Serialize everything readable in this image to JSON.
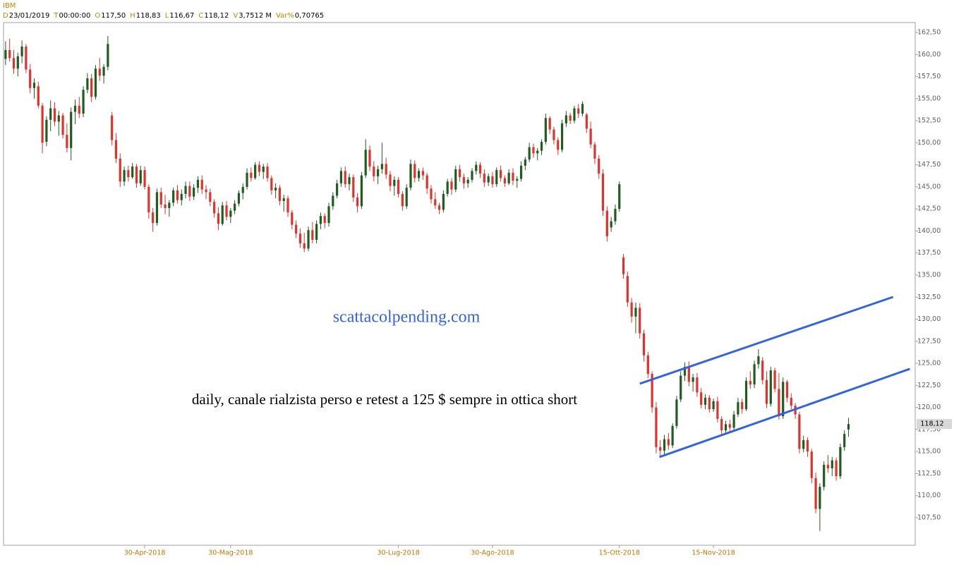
{
  "header": {
    "symbol": "IBM",
    "fields": [
      {
        "key": "D",
        "value": "23/01/2019"
      },
      {
        "key": "T",
        "value": "00:00:00"
      },
      {
        "key": "O",
        "value": "117,50"
      },
      {
        "key": "H",
        "value": "118,83"
      },
      {
        "key": "L",
        "value": "116,67"
      },
      {
        "key": "C",
        "value": "118,12"
      },
      {
        "key": "V",
        "value": "3,7512 M"
      },
      {
        "key": "Var%",
        "value": "0,70765"
      }
    ]
  },
  "chart_data": {
    "type": "candlestick",
    "annotations": [
      "scattacolpending.com",
      "daily, canale rialzista perso e retest a 125 $ sempre in ottica short"
    ],
    "up_color": "#1f5c1f",
    "down_color": "#e2312b",
    "trend_color": "#3464dc",
    "xlim": [
      -0.5,
      222.3
    ],
    "ylim": [
      104.38,
      163.62
    ],
    "xticks": [
      {
        "value": 34,
        "label": "30-Apr-2018"
      },
      {
        "value": 55,
        "label": "30-Mag-2018"
      },
      {
        "value": 96,
        "label": "30-Lug-2018"
      },
      {
        "value": 119,
        "label": "30-Ago-2018"
      },
      {
        "value": 150,
        "label": "15-Ott-2018"
      },
      {
        "value": 173,
        "label": "15-Nov-2018"
      }
    ],
    "yticks": [
      {
        "value": 107.5,
        "label": "107,50"
      },
      {
        "value": 110,
        "label": "110,00"
      },
      {
        "value": 112.5,
        "label": "112,50"
      },
      {
        "value": 115,
        "label": "115,00"
      },
      {
        "value": 117.5,
        "label": "117,50"
      },
      {
        "value": 120,
        "label": "120,00"
      },
      {
        "value": 122.5,
        "label": "122,50"
      },
      {
        "value": 125,
        "label": "125,00"
      },
      {
        "value": 127.5,
        "label": "127,50"
      },
      {
        "value": 130,
        "label": "130,00"
      },
      {
        "value": 132.5,
        "label": "132,50"
      },
      {
        "value": 135,
        "label": "135,00"
      },
      {
        "value": 137.5,
        "label": "137,50"
      },
      {
        "value": 140,
        "label": "140,00"
      },
      {
        "value": 142.5,
        "label": "142,50"
      },
      {
        "value": 145,
        "label": "145,00"
      },
      {
        "value": 147.5,
        "label": "147,50"
      },
      {
        "value": 150,
        "label": "150,00"
      },
      {
        "value": 152.5,
        "label": "152,50"
      },
      {
        "value": 155,
        "label": "155,00"
      },
      {
        "value": 157.5,
        "label": "157,50"
      },
      {
        "value": 160,
        "label": "160,00"
      },
      {
        "value": 162.5,
        "label": "162,50"
      }
    ],
    "last_price": {
      "value": 118.12,
      "label": "118,12"
    },
    "trendlines": [
      {
        "x": [
          155,
          216.9
        ],
        "y": [
          122.69,
          132.52
        ]
      },
      {
        "x": [
          159.8,
          221
        ],
        "y": [
          114.38,
          124.37
        ]
      }
    ],
    "candles": [
      [
        159.5,
        161.5,
        158.8,
        160.5
      ],
      [
        160.5,
        161.8,
        159.2,
        159.6
      ],
      [
        159.6,
        160.5,
        157.8,
        158.4
      ],
      [
        158.4,
        160.2,
        157.5,
        159.8
      ],
      [
        159.8,
        161.6,
        159.0,
        160.9
      ],
      [
        160.9,
        161.2,
        157.9,
        158.3
      ],
      [
        158.3,
        158.9,
        155.6,
        156.2
      ],
      [
        156.2,
        157.3,
        155.0,
        156.8
      ],
      [
        156.4,
        156.9,
        153.9,
        154.2
      ],
      [
        154.2,
        154.5,
        148.8,
        150.0
      ],
      [
        150.1,
        153.0,
        149.6,
        152.6
      ],
      [
        152.6,
        154.8,
        151.3,
        153.9
      ],
      [
        153.9,
        154.6,
        151.9,
        152.4
      ],
      [
        152.4,
        153.6,
        150.8,
        153.1
      ],
      [
        153.1,
        153.4,
        150.5,
        150.9
      ],
      [
        150.9,
        152.2,
        148.9,
        149.4
      ],
      [
        149.4,
        154.0,
        148.0,
        153.5
      ],
      [
        153.5,
        154.9,
        152.1,
        154.2
      ],
      [
        154.2,
        155.2,
        152.8,
        153.3
      ],
      [
        153.3,
        156.4,
        152.9,
        156.0
      ],
      [
        156.0,
        157.9,
        155.6,
        157.3
      ],
      [
        157.3,
        157.8,
        154.6,
        155.2
      ],
      [
        155.2,
        158.8,
        154.9,
        158.4
      ],
      [
        158.4,
        159.6,
        157.0,
        157.6
      ],
      [
        157.6,
        158.9,
        156.7,
        158.6
      ],
      [
        158.6,
        162.1,
        158.2,
        161.2
      ],
      [
        153.1,
        153.5,
        149.7,
        150.3
      ],
      [
        150.3,
        151.1,
        147.7,
        148.2
      ],
      [
        148.2,
        148.8,
        145.0,
        145.6
      ],
      [
        145.6,
        147.3,
        145.1,
        146.9
      ],
      [
        146.9,
        147.4,
        145.6,
        146.1
      ],
      [
        146.1,
        147.7,
        145.9,
        147.3
      ],
      [
        147.3,
        147.6,
        144.9,
        145.4
      ],
      [
        145.4,
        147.4,
        145.1,
        146.9
      ],
      [
        146.9,
        147.3,
        144.7,
        145.0
      ],
      [
        145.0,
        145.3,
        141.4,
        142.1
      ],
      [
        142.1,
        142.6,
        139.9,
        140.9
      ],
      [
        140.9,
        144.8,
        140.6,
        144.4
      ],
      [
        144.4,
        144.9,
        142.6,
        143.0
      ],
      [
        143.0,
        144.1,
        141.9,
        142.6
      ],
      [
        142.6,
        143.5,
        141.6,
        143.2
      ],
      [
        143.2,
        144.9,
        142.8,
        144.6
      ],
      [
        144.6,
        145.2,
        143.1,
        143.5
      ],
      [
        143.5,
        144.7,
        142.9,
        144.2
      ],
      [
        144.2,
        145.6,
        143.7,
        145.1
      ],
      [
        145.1,
        145.6,
        143.4,
        143.9
      ],
      [
        143.9,
        145.3,
        143.5,
        144.9
      ],
      [
        144.9,
        146.2,
        144.3,
        145.8
      ],
      [
        145.8,
        146.3,
        144.2,
        144.7
      ],
      [
        144.7,
        145.2,
        143.6,
        144.4
      ],
      [
        144.4,
        144.8,
        142.8,
        143.3
      ],
      [
        143.3,
        143.6,
        141.5,
        142.0
      ],
      [
        142.0,
        142.7,
        140.1,
        140.8
      ],
      [
        140.8,
        143.3,
        140.6,
        142.9
      ],
      [
        142.9,
        143.4,
        141.2,
        141.6
      ],
      [
        141.6,
        142.6,
        140.9,
        142.3
      ],
      [
        142.3,
        143.5,
        141.9,
        143.1
      ],
      [
        143.1,
        144.6,
        142.8,
        144.3
      ],
      [
        144.3,
        145.4,
        143.6,
        145.0
      ],
      [
        145.0,
        147.1,
        144.7,
        146.6
      ],
      [
        146.6,
        147.2,
        145.6,
        146.0
      ],
      [
        146.0,
        147.8,
        145.8,
        147.5
      ],
      [
        147.5,
        147.9,
        146.2,
        146.7
      ],
      [
        146.7,
        147.6,
        145.9,
        147.3
      ],
      [
        147.3,
        147.7,
        145.6,
        146.0
      ],
      [
        146.0,
        146.3,
        144.1,
        144.6
      ],
      [
        144.6,
        145.4,
        143.7,
        144.9
      ],
      [
        144.9,
        145.2,
        142.9,
        143.4
      ],
      [
        143.4,
        144.1,
        142.2,
        143.7
      ],
      [
        143.7,
        144.0,
        141.6,
        142.1
      ],
      [
        142.1,
        142.4,
        140.2,
        140.7
      ],
      [
        140.7,
        141.2,
        139.2,
        139.7
      ],
      [
        139.7,
        140.3,
        138.1,
        138.6
      ],
      [
        138.6,
        139.8,
        137.6,
        138.0
      ],
      [
        138.0,
        140.5,
        137.7,
        140.1
      ],
      [
        140.1,
        141.0,
        138.6,
        139.0
      ],
      [
        139.0,
        141.2,
        138.6,
        140.8
      ],
      [
        140.8,
        142.1,
        140.2,
        141.7
      ],
      [
        141.7,
        142.0,
        140.3,
        140.9
      ],
      [
        140.9,
        143.2,
        140.5,
        142.8
      ],
      [
        142.8,
        144.4,
        142.4,
        144.0
      ],
      [
        144.0,
        145.8,
        143.7,
        145.4
      ],
      [
        145.4,
        147.2,
        145.0,
        146.8
      ],
      [
        146.8,
        147.3,
        144.9,
        145.3
      ],
      [
        145.3,
        146.5,
        144.6,
        146.1
      ],
      [
        146.1,
        146.4,
        143.3,
        143.8
      ],
      [
        143.8,
        144.3,
        142.1,
        142.8
      ],
      [
        142.8,
        146.7,
        142.5,
        146.3
      ],
      [
        146.3,
        150.4,
        146.0,
        149.2
      ],
      [
        149.2,
        149.7,
        146.8,
        147.3
      ],
      [
        147.3,
        147.9,
        145.6,
        146.2
      ],
      [
        146.2,
        147.4,
        145.3,
        147.0
      ],
      [
        147.0,
        150.0,
        146.5,
        147.6
      ],
      [
        147.6,
        148.3,
        145.9,
        146.4
      ],
      [
        146.4,
        146.8,
        144.5,
        145.1
      ],
      [
        145.1,
        146.2,
        144.0,
        145.8
      ],
      [
        145.8,
        146.1,
        143.8,
        144.2
      ],
      [
        144.2,
        144.5,
        142.3,
        142.8
      ],
      [
        142.8,
        145.3,
        142.5,
        144.9
      ],
      [
        144.9,
        148.1,
        144.6,
        147.6
      ],
      [
        147.6,
        148.0,
        145.5,
        146.0
      ],
      [
        146.0,
        147.1,
        145.6,
        146.8
      ],
      [
        146.8,
        147.2,
        145.8,
        146.3
      ],
      [
        146.3,
        146.6,
        144.2,
        144.8
      ],
      [
        144.8,
        145.2,
        143.1,
        143.6
      ],
      [
        143.6,
        144.4,
        142.5,
        142.9
      ],
      [
        142.9,
        143.2,
        141.9,
        142.4
      ],
      [
        142.4,
        144.6,
        142.1,
        144.2
      ],
      [
        144.2,
        145.9,
        143.9,
        145.6
      ],
      [
        145.6,
        146.0,
        144.1,
        144.7
      ],
      [
        144.7,
        147.4,
        144.4,
        147.0
      ],
      [
        147.0,
        147.5,
        145.6,
        146.1
      ],
      [
        146.1,
        146.5,
        144.8,
        145.4
      ],
      [
        145.4,
        146.1,
        144.9,
        145.8
      ],
      [
        145.8,
        147.1,
        145.5,
        146.8
      ],
      [
        146.8,
        147.9,
        146.4,
        147.5
      ],
      [
        147.5,
        147.8,
        146.0,
        146.5
      ],
      [
        146.5,
        147.0,
        145.0,
        145.5
      ],
      [
        145.5,
        146.5,
        145.1,
        146.2
      ],
      [
        146.2,
        146.7,
        144.9,
        145.3
      ],
      [
        145.3,
        147.2,
        145.0,
        146.9
      ],
      [
        146.9,
        147.4,
        145.6,
        146.0
      ],
      [
        146.0,
        146.3,
        145.0,
        145.4
      ],
      [
        145.4,
        147.0,
        145.2,
        146.6
      ],
      [
        146.6,
        147.1,
        145.2,
        145.7
      ],
      [
        145.7,
        146.2,
        144.9,
        145.9
      ],
      [
        145.9,
        147.9,
        145.6,
        147.4
      ],
      [
        147.4,
        148.4,
        146.9,
        148.1
      ],
      [
        148.1,
        150.0,
        147.8,
        149.5
      ],
      [
        149.5,
        149.9,
        148.3,
        148.8
      ],
      [
        148.8,
        149.4,
        148.0,
        149.1
      ],
      [
        149.1,
        150.4,
        148.6,
        150.1
      ],
      [
        150.1,
        153.3,
        149.8,
        152.8
      ],
      [
        152.8,
        153.0,
        151.0,
        151.5
      ],
      [
        151.5,
        151.8,
        149.8,
        150.3
      ],
      [
        150.3,
        150.6,
        148.6,
        149.2
      ],
      [
        149.2,
        152.6,
        148.9,
        152.2
      ],
      [
        152.2,
        153.6,
        151.8,
        153.1
      ],
      [
        153.1,
        153.4,
        152.1,
        152.5
      ],
      [
        152.5,
        154.2,
        152.2,
        153.9
      ],
      [
        153.9,
        154.4,
        152.8,
        153.3
      ],
      [
        153.3,
        154.7,
        153.0,
        154.4
      ],
      [
        153.2,
        153.4,
        151.1,
        151.6
      ],
      [
        151.6,
        152.4,
        149.4,
        149.8
      ],
      [
        149.8,
        150.1,
        147.6,
        148.2
      ],
      [
        148.2,
        148.6,
        145.9,
        146.5
      ],
      [
        146.5,
        147.0,
        141.7,
        142.3
      ],
      [
        142.3,
        142.8,
        138.8,
        139.4
      ],
      [
        140.4,
        141.6,
        139.9,
        141.1
      ],
      [
        141.1,
        143.0,
        140.7,
        142.5
      ],
      [
        142.5,
        145.6,
        142.2,
        145.3
      ],
      [
        137.0,
        137.4,
        134.6,
        135.1
      ],
      [
        134.9,
        135.4,
        131.4,
        131.9
      ],
      [
        131.9,
        132.4,
        129.6,
        130.3
      ],
      [
        130.3,
        131.9,
        128.4,
        131.3
      ],
      [
        131.3,
        131.8,
        127.8,
        128.4
      ],
      [
        128.4,
        128.8,
        125.2,
        125.9
      ],
      [
        125.9,
        126.3,
        123.3,
        123.8
      ],
      [
        123.8,
        124.1,
        119.4,
        120.0
      ],
      [
        120.0,
        120.6,
        114.8,
        115.5
      ],
      [
        115.5,
        116.3,
        114.5,
        115.1
      ],
      [
        115.1,
        116.9,
        114.6,
        116.4
      ],
      [
        116.4,
        117.1,
        115.2,
        115.7
      ],
      [
        115.7,
        118.2,
        115.4,
        117.9
      ],
      [
        117.9,
        121.3,
        117.6,
        120.9
      ],
      [
        120.9,
        124.1,
        120.6,
        123.6
      ],
      [
        123.6,
        125.1,
        123.0,
        124.6
      ],
      [
        124.6,
        125.2,
        122.4,
        122.9
      ],
      [
        122.9,
        123.8,
        121.8,
        123.4
      ],
      [
        123.4,
        123.9,
        121.2,
        121.7
      ],
      [
        121.7,
        122.2,
        119.9,
        120.3
      ],
      [
        120.3,
        121.5,
        119.8,
        121.1
      ],
      [
        121.1,
        121.4,
        119.4,
        119.8
      ],
      [
        119.8,
        121.0,
        119.5,
        120.7
      ],
      [
        120.7,
        121.2,
        118.3,
        118.7
      ],
      [
        118.7,
        119.0,
        116.9,
        117.4
      ],
      [
        117.4,
        118.5,
        117.0,
        118.1
      ],
      [
        118.1,
        118.6,
        117.2,
        117.7
      ],
      [
        117.7,
        119.6,
        117.4,
        119.2
      ],
      [
        119.2,
        121.1,
        118.9,
        120.6
      ],
      [
        120.6,
        121.0,
        119.3,
        119.8
      ],
      [
        119.8,
        123.4,
        119.6,
        123.0
      ],
      [
        123.0,
        124.1,
        122.1,
        122.6
      ],
      [
        122.6,
        125.3,
        122.2,
        124.9
      ],
      [
        124.9,
        126.6,
        124.4,
        125.8
      ],
      [
        125.3,
        125.7,
        122.6,
        123.1
      ],
      [
        123.1,
        124.1,
        119.9,
        120.4
      ],
      [
        120.4,
        124.6,
        120.1,
        124.2
      ],
      [
        124.2,
        124.5,
        121.7,
        122.1
      ],
      [
        122.1,
        123.9,
        118.6,
        119.0
      ],
      [
        119.0,
        123.4,
        118.7,
        122.9
      ],
      [
        122.9,
        123.1,
        120.6,
        121.1
      ],
      [
        121.1,
        121.6,
        119.8,
        120.2
      ],
      [
        120.2,
        120.5,
        118.7,
        119.2
      ],
      [
        119.2,
        119.5,
        114.8,
        115.3
      ],
      [
        115.3,
        116.8,
        114.9,
        116.3
      ],
      [
        116.3,
        116.6,
        114.4,
        115.0
      ],
      [
        115.0,
        115.3,
        111.4,
        112.0
      ],
      [
        112.0,
        112.6,
        108.0,
        108.5
      ],
      [
        108.5,
        111.4,
        106.0,
        111.0
      ],
      [
        111.0,
        113.9,
        110.6,
        113.5
      ],
      [
        113.5,
        114.6,
        112.6,
        113.1
      ],
      [
        113.1,
        114.4,
        112.2,
        114.0
      ],
      [
        114.0,
        114.3,
        111.7,
        112.2
      ],
      [
        112.2,
        115.9,
        111.9,
        115.5
      ],
      [
        115.5,
        117.4,
        115.1,
        117.0
      ],
      [
        117.5,
        118.83,
        116.67,
        118.12
      ]
    ]
  }
}
